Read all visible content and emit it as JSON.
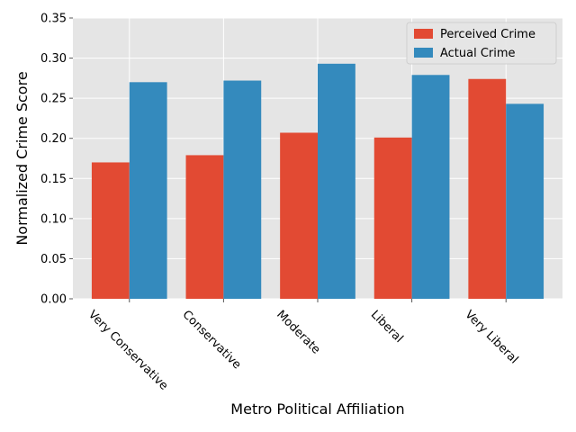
{
  "chart_data": {
    "type": "bar",
    "title": "",
    "xlabel": "Metro Political Affiliation",
    "ylabel": "Normalized Crime Score",
    "categories": [
      "Very Conservative",
      "Conservative",
      "Moderate",
      "Liberal",
      "Very Liberal"
    ],
    "series": [
      {
        "name": "Perceived Crime",
        "color": "#e24a33",
        "values": [
          0.17,
          0.179,
          0.207,
          0.201,
          0.274
        ]
      },
      {
        "name": "Actual Crime",
        "color": "#348abd",
        "values": [
          0.27,
          0.272,
          0.293,
          0.279,
          0.243
        ]
      }
    ],
    "ylim": [
      0,
      0.35
    ],
    "yticks": [
      "0.00",
      "0.05",
      "0.10",
      "0.15",
      "0.20",
      "0.25",
      "0.30",
      "0.35"
    ],
    "grid": true,
    "legend_position": "top-right",
    "background": "#e5e5e5"
  }
}
